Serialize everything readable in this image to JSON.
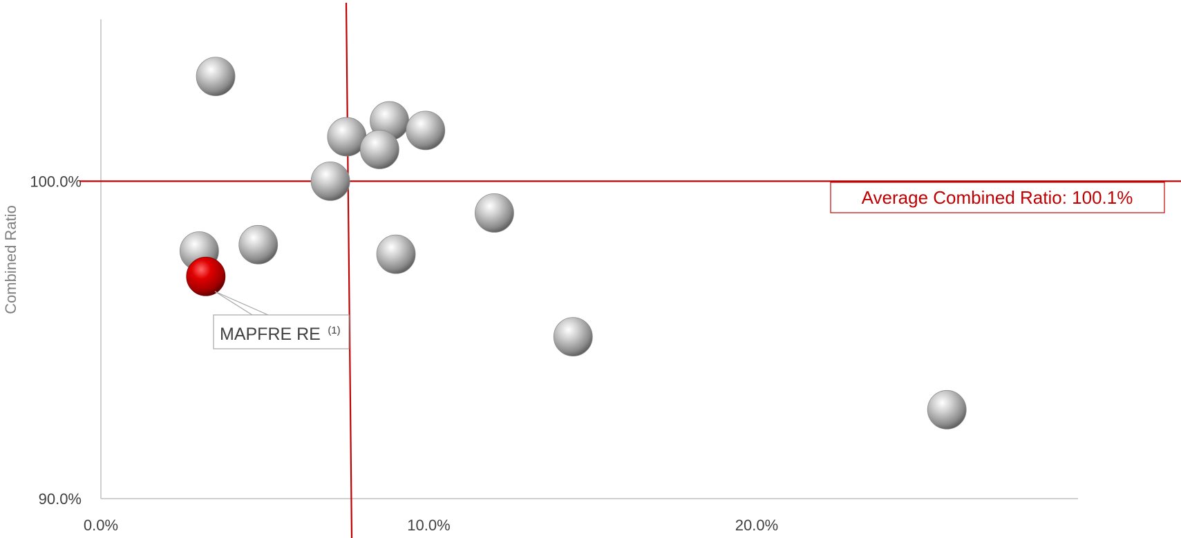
{
  "chart_data": {
    "type": "scatter",
    "title": "",
    "xlabel": "",
    "ylabel": "Combined Ratio",
    "xlim": [
      0,
      29.8
    ],
    "ylim": [
      90,
      105.1
    ],
    "x_ticks": [
      {
        "value": 0,
        "label": "0.0%"
      },
      {
        "value": 10,
        "label": "10.0%"
      },
      {
        "value": 20,
        "label": "20.0%"
      }
    ],
    "y_ticks": [
      {
        "value": 90,
        "label": "90.0%"
      },
      {
        "value": 100,
        "label": "100.0%"
      }
    ],
    "grid": false,
    "colors": {
      "peer": "#a6a6a6",
      "highlight": "#c00000",
      "reference": "#c00000",
      "axis": "#bfbfbf"
    },
    "points": [
      {
        "x": 3.5,
        "y": 103.3,
        "highlight": false
      },
      {
        "x": 7.5,
        "y": 101.4,
        "highlight": false
      },
      {
        "x": 8.8,
        "y": 101.9,
        "highlight": false
      },
      {
        "x": 8.5,
        "y": 101.0,
        "highlight": false
      },
      {
        "x": 9.9,
        "y": 101.6,
        "highlight": false
      },
      {
        "x": 7.0,
        "y": 100.0,
        "highlight": false
      },
      {
        "x": 12.0,
        "y": 99.0,
        "highlight": false
      },
      {
        "x": 3.0,
        "y": 97.8,
        "highlight": false
      },
      {
        "x": 4.8,
        "y": 98.0,
        "highlight": false
      },
      {
        "x": 9.0,
        "y": 97.7,
        "highlight": false
      },
      {
        "x": 14.4,
        "y": 95.1,
        "highlight": false
      },
      {
        "x": 25.8,
        "y": 92.8,
        "highlight": false
      },
      {
        "x": 3.2,
        "y": 97.0,
        "highlight": true,
        "label": "MAPFRE RE",
        "label_sup": "(1)"
      }
    ],
    "reference_lines": {
      "horizontal": {
        "y": 100.0,
        "label": "Average Combined Ratio: 100.1%"
      },
      "vertical": {
        "x": 7.4
      }
    }
  }
}
